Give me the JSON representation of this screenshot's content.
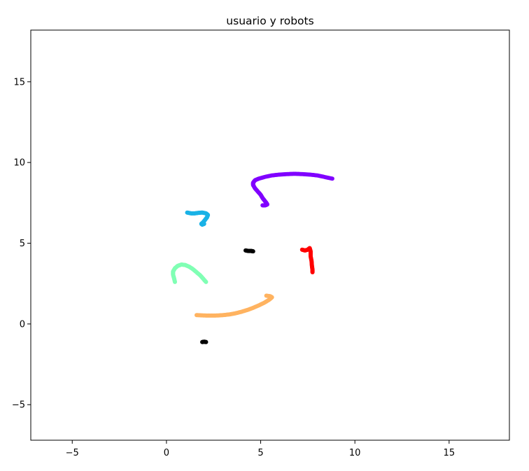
{
  "chart_data": {
    "type": "scatter",
    "title": "usuario y robots",
    "xlabel": "",
    "ylabel": "",
    "xlim": [
      -7.2,
      18.2
    ],
    "ylim": [
      -7.2,
      18.2
    ],
    "xticks": [
      -5,
      0,
      5,
      10,
      15
    ],
    "yticks": [
      -5,
      0,
      5,
      10,
      15
    ],
    "xtick_labels": [
      "−5",
      "0",
      "5",
      "10",
      "15"
    ],
    "ytick_labels": [
      "−5",
      "0",
      "5",
      "10",
      "15"
    ],
    "grid": false,
    "legend": "none",
    "series": [
      {
        "color": "#8000ff",
        "points": [
          [
            8.8,
            9.0
          ],
          [
            8.4,
            9.1
          ],
          [
            8.0,
            9.2
          ],
          [
            7.6,
            9.25
          ],
          [
            7.2,
            9.28
          ],
          [
            6.8,
            9.3
          ],
          [
            6.4,
            9.28
          ],
          [
            6.0,
            9.25
          ],
          [
            5.6,
            9.2
          ],
          [
            5.2,
            9.1
          ],
          [
            4.9,
            9.0
          ],
          [
            4.7,
            8.9
          ],
          [
            4.6,
            8.75
          ],
          [
            4.6,
            8.6
          ],
          [
            4.7,
            8.4
          ],
          [
            4.85,
            8.2
          ],
          [
            5.0,
            8.0
          ],
          [
            5.1,
            7.8
          ],
          [
            5.2,
            7.65
          ],
          [
            5.3,
            7.5
          ],
          [
            5.35,
            7.4
          ],
          [
            5.25,
            7.35
          ],
          [
            5.1,
            7.35
          ]
        ]
      },
      {
        "color": "#1ab2e6",
        "points": [
          [
            1.1,
            6.9
          ],
          [
            1.3,
            6.85
          ],
          [
            1.5,
            6.85
          ],
          [
            1.7,
            6.88
          ],
          [
            1.9,
            6.9
          ],
          [
            2.1,
            6.85
          ],
          [
            2.2,
            6.75
          ],
          [
            2.15,
            6.6
          ],
          [
            2.05,
            6.45
          ],
          [
            1.95,
            6.3
          ],
          [
            1.85,
            6.2
          ],
          [
            1.9,
            6.15
          ],
          [
            2.0,
            6.2
          ]
        ]
      },
      {
        "color": "#80ffb4",
        "points": [
          [
            2.1,
            2.6
          ],
          [
            1.95,
            2.8
          ],
          [
            1.8,
            3.0
          ],
          [
            1.6,
            3.2
          ],
          [
            1.4,
            3.4
          ],
          [
            1.2,
            3.55
          ],
          [
            1.0,
            3.65
          ],
          [
            0.8,
            3.68
          ],
          [
            0.6,
            3.6
          ],
          [
            0.45,
            3.45
          ],
          [
            0.35,
            3.25
          ],
          [
            0.35,
            3.05
          ],
          [
            0.4,
            2.85
          ],
          [
            0.45,
            2.6
          ]
        ]
      },
      {
        "color": "#ffb360",
        "points": [
          [
            1.6,
            0.55
          ],
          [
            1.9,
            0.53
          ],
          [
            2.2,
            0.52
          ],
          [
            2.5,
            0.52
          ],
          [
            2.8,
            0.53
          ],
          [
            3.1,
            0.56
          ],
          [
            3.4,
            0.6
          ],
          [
            3.7,
            0.67
          ],
          [
            4.0,
            0.76
          ],
          [
            4.3,
            0.87
          ],
          [
            4.6,
            1.0
          ],
          [
            4.9,
            1.15
          ],
          [
            5.2,
            1.32
          ],
          [
            5.45,
            1.5
          ],
          [
            5.6,
            1.65
          ],
          [
            5.5,
            1.72
          ],
          [
            5.3,
            1.75
          ]
        ]
      },
      {
        "color": "#ff0000",
        "points": [
          [
            7.2,
            4.6
          ],
          [
            7.35,
            4.55
          ],
          [
            7.5,
            4.6
          ],
          [
            7.6,
            4.7
          ],
          [
            7.65,
            4.5
          ],
          [
            7.65,
            4.2
          ],
          [
            7.7,
            3.9
          ],
          [
            7.72,
            3.6
          ],
          [
            7.75,
            3.35
          ],
          [
            7.75,
            3.2
          ]
        ]
      },
      {
        "color": "#000000",
        "points": [
          [
            4.2,
            4.55
          ],
          [
            4.35,
            4.52
          ],
          [
            4.5,
            4.52
          ],
          [
            4.6,
            4.5
          ]
        ]
      },
      {
        "color": "#000000",
        "points": [
          [
            1.9,
            -1.12
          ],
          [
            2.0,
            -1.1
          ],
          [
            2.1,
            -1.12
          ]
        ]
      }
    ]
  }
}
